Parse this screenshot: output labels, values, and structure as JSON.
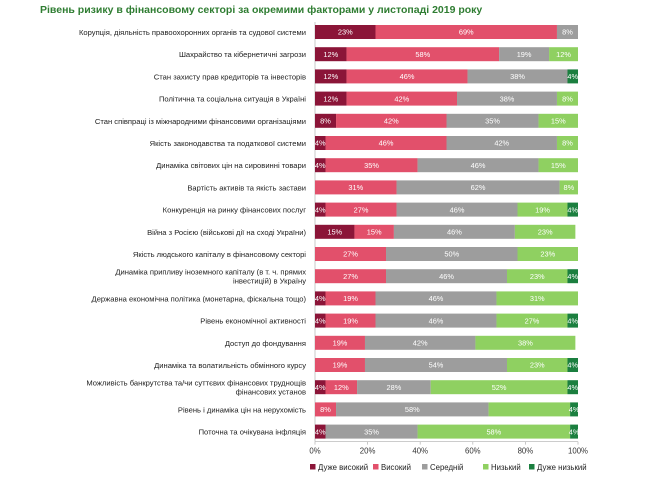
{
  "colors": {
    "very_high": "#8b1538",
    "high": "#e2506b",
    "medium": "#9d9d9d",
    "low": "#8fd061",
    "very_low": "#1b7f3f",
    "title": "#2f7d32"
  },
  "chart_data": {
    "type": "bar",
    "orientation": "horizontal",
    "stacked": true,
    "percent": true,
    "title": "Рівень ризику в фінансовому секторі за окремими факторами у листопаді 2019 року",
    "xlim": [
      0,
      100
    ],
    "x_ticks": [
      "0%",
      "20%",
      "40%",
      "60%",
      "80%",
      "100%"
    ],
    "legend_position": "bottom",
    "grid": false,
    "categories": [
      "Корупція, діяльність правоохоронних органів та судової системи",
      "Шахрайство та кібернетичні загрози",
      "Стан захисту прав кредиторів та інвесторів",
      "Політична та соціальна ситуація в Україні",
      "Стан співпраці із міжнародними фінансовими організаціями",
      "Якість законодавства та податкової системи",
      "Динаміка світових цін на сировинні товари",
      "Вартість активів та якість застави",
      "Конкуренція на ринку фінансових послуг",
      "Війна з Росією (військові дії на сході України)",
      "Якість людського капіталу в фінансовому секторі",
      "Динаміка припливу іноземного капіталу (в т. ч. прямих інвестицій) в Україну",
      "Державна економічна політика (монетарна, фіскальна тощо)",
      "Рівень економічної активності",
      "Доступ до фондування",
      "Динаміка та волатильність обмінного курсу",
      "Можливість банкрутства та/чи суттєвих фінансових труднощів фінансових установ",
      "Рівень і динаміка цін на нерухомість",
      "Поточна та очікувана інфляція"
    ],
    "series": [
      {
        "name": "Дуже високий",
        "key": "very_high",
        "values": [
          23,
          12,
          12,
          12,
          8,
          4,
          4,
          0,
          4,
          15,
          0,
          0,
          4,
          4,
          0,
          0,
          4,
          0,
          4
        ],
        "labels": [
          "23%",
          "12%",
          "12%",
          "12%",
          "8%",
          "4%",
          "4%",
          "",
          "4%",
          "15%",
          "",
          "",
          "4%",
          "4%",
          "",
          "",
          "4%",
          "",
          "4%"
        ]
      },
      {
        "name": "Високий",
        "key": "high",
        "values": [
          69,
          58,
          46,
          42,
          42,
          46,
          35,
          31,
          27,
          15,
          27,
          27,
          19,
          19,
          19,
          19,
          12,
          8,
          0
        ],
        "labels": [
          "69%",
          "58%",
          "46%",
          "42%",
          "42%",
          "46%",
          "35%",
          "31%",
          "27%",
          "15%",
          "27%",
          "27%",
          "19%",
          "19%",
          "19%",
          "19%",
          "12%",
          "8%",
          ""
        ]
      },
      {
        "name": "Середній",
        "key": "medium",
        "values": [
          8,
          19,
          38,
          38,
          35,
          42,
          46,
          62,
          46,
          46,
          50,
          46,
          46,
          46,
          42,
          54,
          28,
          58,
          35
        ],
        "labels": [
          "8%",
          "19%",
          "38%",
          "38%",
          "35%",
          "42%",
          "46%",
          "62%",
          "46%",
          "46%",
          "50%",
          "46%",
          "46%",
          "46%",
          "42%",
          "54%",
          "28%",
          "58%",
          "35%"
        ]
      },
      {
        "name": "Низький",
        "key": "low",
        "values": [
          0,
          12,
          0,
          8,
          15,
          8,
          15,
          8,
          19,
          23,
          23,
          23,
          31,
          27,
          38,
          23,
          52,
          31,
          58
        ],
        "labels": [
          "",
          "12%",
          "",
          "8%",
          "15%",
          "8%",
          "15%",
          "8%",
          "19%",
          "23%",
          "23%",
          "23%",
          "31%",
          "27%",
          "38%",
          "23%",
          "52%",
          "",
          "58%"
        ]
      },
      {
        "name": "Дуже низький",
        "key": "very_low",
        "values": [
          0,
          0,
          4,
          0,
          0,
          0,
          0,
          0,
          4,
          0,
          0,
          4,
          0,
          4,
          0,
          4,
          4,
          4,
          4
        ],
        "labels": [
          "",
          "",
          "4%",
          "",
          "",
          "",
          "",
          "",
          "4%",
          "",
          "",
          "4%",
          "",
          "4%",
          "",
          "4%",
          "4%",
          "4%",
          "4%"
        ]
      }
    ]
  }
}
